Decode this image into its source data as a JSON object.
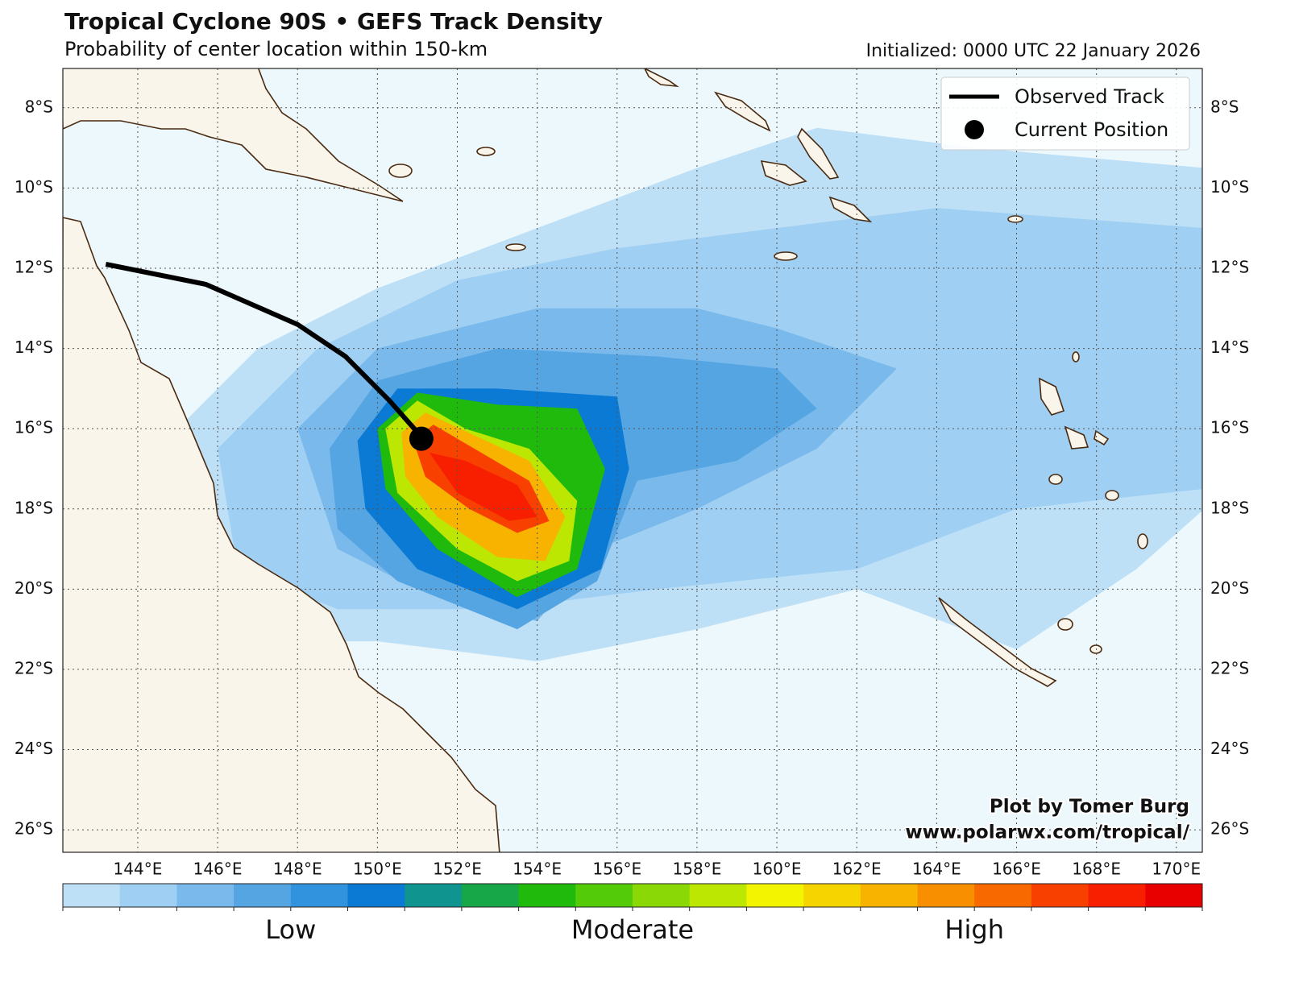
{
  "map": {
    "type": "track-density",
    "title": "Tropical Cyclone 90S • GEFS Track Density",
    "subtitle": "Probability of center location within 150-km",
    "initialized": "Initialized: 0000 UTC 22 January 2026",
    "credit": [
      "Plot by Tomer Burg",
      "www.polarwx.com/tropical/"
    ],
    "xlim": [
      142.125,
      170.65
    ],
    "ylim": [
      -26.56,
      -7.02
    ],
    "grid": true,
    "xticks": [
      {
        "value": 144,
        "label": "144°E"
      },
      {
        "value": 146,
        "label": "146°E"
      },
      {
        "value": 148,
        "label": "148°E"
      },
      {
        "value": 150,
        "label": "150°E"
      },
      {
        "value": 152,
        "label": "152°E"
      },
      {
        "value": 154,
        "label": "154°E"
      },
      {
        "value": 156,
        "label": "156°E"
      },
      {
        "value": 158,
        "label": "158°E"
      },
      {
        "value": 160,
        "label": "160°E"
      },
      {
        "value": 162,
        "label": "162°E"
      },
      {
        "value": 164,
        "label": "164°E"
      },
      {
        "value": 166,
        "label": "166°E"
      },
      {
        "value": 168,
        "label": "168°E"
      },
      {
        "value": 170,
        "label": "170°E"
      }
    ],
    "yticks": [
      {
        "value": -8,
        "label": "8°S"
      },
      {
        "value": -10,
        "label": "10°S"
      },
      {
        "value": -12,
        "label": "12°S"
      },
      {
        "value": -14,
        "label": "14°S"
      },
      {
        "value": -16,
        "label": "16°S"
      },
      {
        "value": -18,
        "label": "18°S"
      },
      {
        "value": -20,
        "label": "20°S"
      },
      {
        "value": -22,
        "label": "22°S"
      },
      {
        "value": -24,
        "label": "24°S"
      },
      {
        "value": -26,
        "label": "26°S"
      }
    ],
    "colorbar": {
      "colors": [
        "#bde0f7",
        "#9fcff2",
        "#7ab9eb",
        "#56a5e3",
        "#3192dd",
        "#0b7ad4",
        "#0f9490",
        "#17a648",
        "#1fba0c",
        "#54cb08",
        "#8ad806",
        "#bce703",
        "#f3f400",
        "#f6d400",
        "#f7b300",
        "#f88f00",
        "#f86900",
        "#f84000",
        "#f81f00",
        "#e80000"
      ],
      "labels": [
        "Low",
        "Moderate",
        "High"
      ]
    },
    "density": [
      {
        "level": 0,
        "lon": [
          145,
          147,
          150,
          154,
          158,
          161,
          165,
          170.7,
          170.7,
          169,
          166,
          162,
          158,
          154,
          150,
          146,
          145,
          144.8
        ],
        "lat": [
          -16,
          -14,
          -12.5,
          -11,
          -9.5,
          -8.5,
          -9,
          -9.5,
          -18,
          -19.5,
          -21.5,
          -20,
          -21,
          -21.8,
          -21.3,
          -21.3,
          -19.5,
          -17
        ]
      },
      {
        "level": 1,
        "lon": [
          146,
          148.5,
          152,
          156,
          160,
          164,
          170.7,
          170.7,
          166,
          162,
          157,
          153,
          149,
          146.5
        ],
        "lat": [
          -16.5,
          -14,
          -12.3,
          -11.5,
          -11,
          -10.5,
          -11,
          -17.5,
          -18,
          -19.5,
          -20,
          -20.5,
          -20.5,
          -19.5
        ]
      },
      {
        "level": 2,
        "lon": [
          148,
          150,
          154,
          158,
          160,
          163,
          161,
          158,
          155.5,
          154,
          151,
          149
        ],
        "lat": [
          -16,
          -14,
          -13,
          -13,
          -13.5,
          -14.5,
          -16.5,
          -18,
          -19,
          -20.8,
          -20,
          -19
        ]
      },
      {
        "level": 3,
        "lon": [
          148.8,
          150,
          153,
          157,
          160,
          161,
          159,
          156.5,
          155.5,
          153.5,
          150.5,
          149
        ],
        "lat": [
          -16.5,
          -14.8,
          -14,
          -14.2,
          -14.5,
          -15.5,
          -16.8,
          -17.3,
          -19.8,
          -21,
          -19.8,
          -18.5
        ]
      },
      {
        "level": 5,
        "lon": [
          149.5,
          150.5,
          153,
          156,
          156.3,
          155.6,
          153.5,
          151,
          149.7
        ],
        "lat": [
          -16.3,
          -15,
          -15,
          -15.2,
          -17,
          -19.5,
          -20.5,
          -19.5,
          -18
        ]
      },
      {
        "level": 8,
        "lon": [
          150,
          151,
          153,
          155,
          155.7,
          155,
          153.5,
          151.5,
          150.2
        ],
        "lat": [
          -16,
          -15.1,
          -15.4,
          -15.5,
          -17,
          -19.5,
          -20.2,
          -19,
          -17.5
        ]
      },
      {
        "level": 11,
        "lon": [
          150.2,
          151,
          152.2,
          153.8,
          155,
          154.8,
          153.5,
          152,
          150.5
        ],
        "lat": [
          -16,
          -15.3,
          -16,
          -16.5,
          -17.8,
          -19.3,
          -19.8,
          -19,
          -17.6
        ]
      },
      {
        "level": 14,
        "lon": [
          150.6,
          151.2,
          152.5,
          153.8,
          154.7,
          154.2,
          153,
          151.5,
          150.7
        ],
        "lat": [
          -16.1,
          -15.6,
          -16.2,
          -16.8,
          -18.2,
          -19.3,
          -19.2,
          -18.2,
          -17.2
        ]
      },
      {
        "level": 17,
        "lon": [
          150.9,
          151.4,
          152.6,
          153.8,
          154.3,
          153.5,
          152.3,
          151.2
        ],
        "lat": [
          -16.3,
          -15.9,
          -16.6,
          -17.3,
          -18.3,
          -18.6,
          -18,
          -17.2
        ]
      },
      {
        "level": 18,
        "lon": [
          151.3,
          152.2,
          153.5,
          154,
          153.3,
          152
        ],
        "lat": [
          -16.6,
          -16.8,
          -17.4,
          -18.2,
          -18.3,
          -17.6
        ]
      }
    ],
    "track": {
      "name": "Observed Track",
      "color": "#000000",
      "lon": [
        143.2,
        145.7,
        148.0,
        149.2,
        150.3,
        151.1
      ],
      "lat": [
        -11.9,
        -12.4,
        -13.4,
        -14.2,
        -15.3,
        -16.2
      ]
    },
    "current": {
      "name": "Current Position",
      "color": "#000000",
      "lon": 151.1,
      "lat": -16.25
    }
  }
}
